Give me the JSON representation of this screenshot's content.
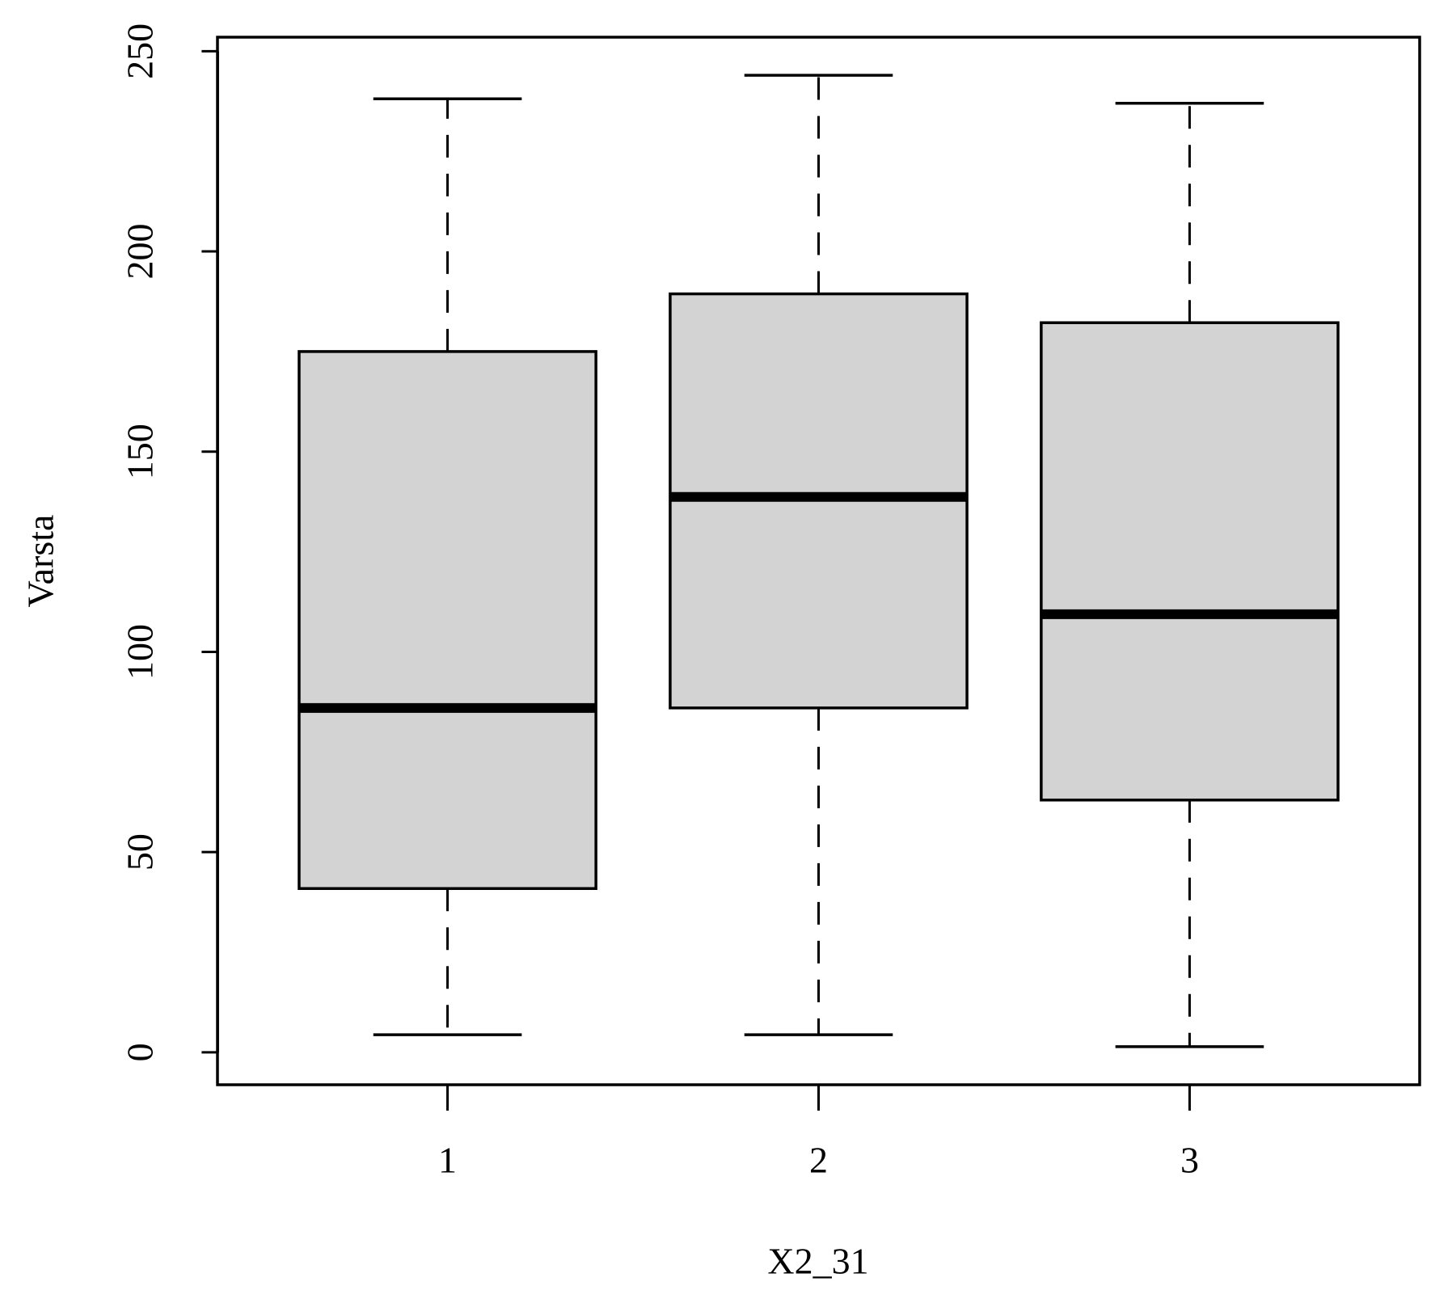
{
  "chart_data": {
    "type": "boxplot",
    "x_label": "X2_31",
    "y_label": "Varsta",
    "categories": [
      "1",
      "2",
      "3"
    ],
    "whisker_low": [
      4.4,
      4.4,
      1.4
    ],
    "q1": [
      40.9,
      86,
      63
    ],
    "median": [
      86,
      138.7,
      109.4
    ],
    "q3": [
      175,
      189.4,
      182.2
    ],
    "whisker_high": [
      238.1,
      244,
      237
    ],
    "color": "#d3d3d3",
    "ylim": [
      -8.1,
      253.5
    ],
    "yticks": [
      0,
      50,
      100,
      150,
      200,
      250
    ]
  }
}
